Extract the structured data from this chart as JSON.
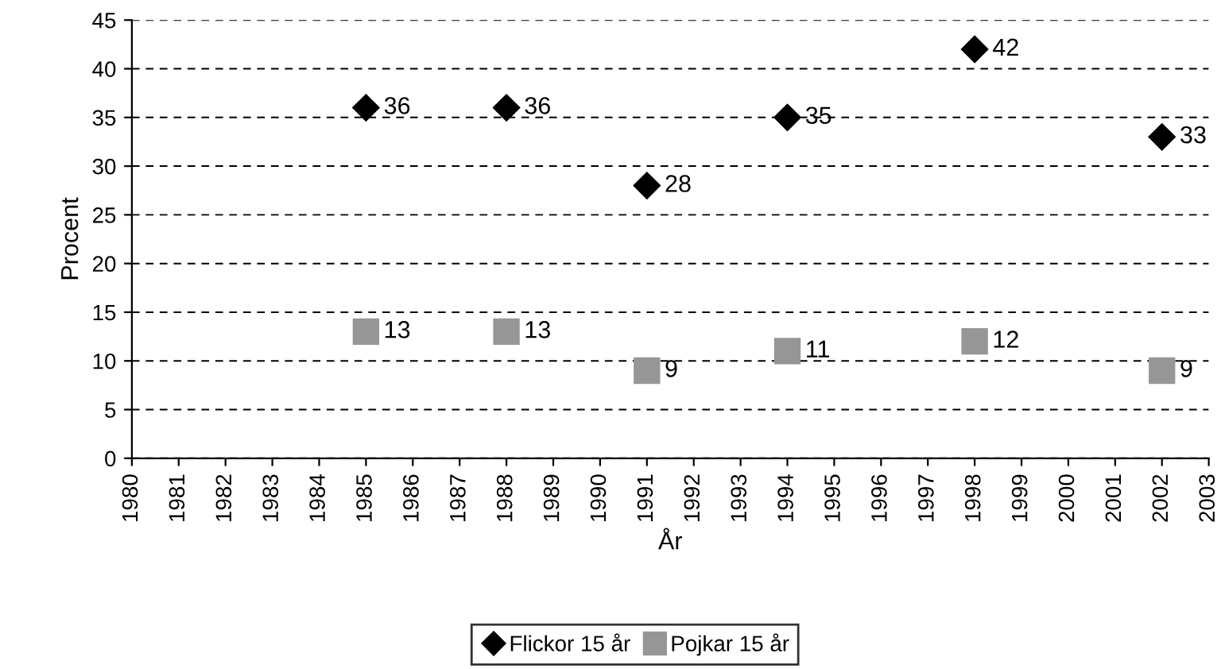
{
  "chart_data": {
    "type": "scatter",
    "xlabel": "År",
    "ylabel": "Procent",
    "x": [
      1985,
      1988,
      1991,
      1994,
      1998,
      2002
    ],
    "series": [
      {
        "name": "Flickor 15 år",
        "color": "#000000",
        "marker": "diamond",
        "values": [
          36,
          36,
          28,
          35,
          42,
          33
        ]
      },
      {
        "name": "Pojkar 15 år",
        "color": "#969696",
        "marker": "square",
        "values": [
          13,
          13,
          9,
          11,
          12,
          9
        ]
      }
    ],
    "xlim": [
      1980,
      2003
    ],
    "xticks": [
      1980,
      1981,
      1982,
      1983,
      1984,
      1985,
      1986,
      1987,
      1988,
      1989,
      1990,
      1991,
      1992,
      1993,
      1994,
      1995,
      1996,
      1997,
      1998,
      1999,
      2000,
      2001,
      2002,
      2003
    ],
    "ylim": [
      0,
      45
    ],
    "yticks": [
      0,
      5,
      10,
      15,
      20,
      25,
      30,
      35,
      40,
      45
    ],
    "grid": "y",
    "legend": "bottom",
    "data_labels": true
  }
}
